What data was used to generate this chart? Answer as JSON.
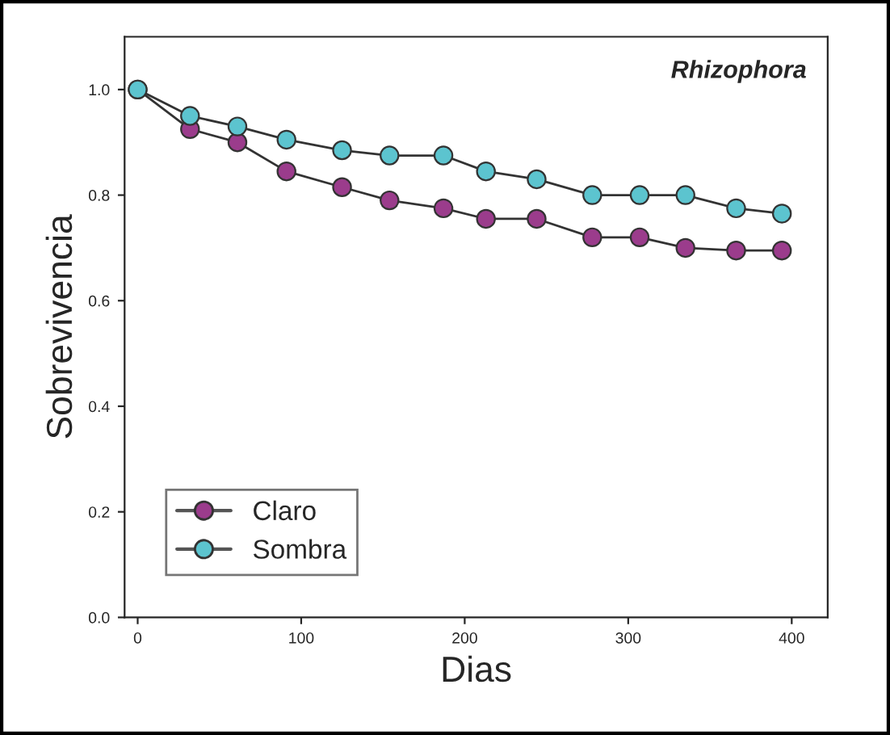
{
  "chart_data": {
    "type": "line",
    "title": "Rhizophora",
    "xlabel": "Dias",
    "ylabel": "Sobrevivencia",
    "marker": "circle",
    "legend": "bottom left",
    "grid": false,
    "xlim": [
      -8,
      422
    ],
    "xticks": [
      0,
      100,
      200,
      300,
      400
    ],
    "ylim": [
      0,
      1.1
    ],
    "yticks": [
      {
        "value": 0,
        "label": "0.0"
      },
      {
        "value": 0.2,
        "label": "0.2"
      },
      {
        "value": 0.4,
        "label": "0.4"
      },
      {
        "value": 0.6,
        "label": "0.6"
      },
      {
        "value": 0.8,
        "label": "0.8"
      },
      {
        "value": 1.0,
        "label": "1.0"
      }
    ],
    "x": [
      0,
      32,
      61,
      91,
      125,
      154,
      187,
      213,
      244,
      278,
      307,
      335,
      366,
      394
    ],
    "series": [
      {
        "name": "Claro",
        "color": "#9b3c8c",
        "values": [
          1.0,
          0.925,
          0.9,
          0.845,
          0.815,
          0.79,
          0.775,
          0.755,
          0.755,
          0.72,
          0.72,
          0.7,
          0.695,
          0.695
        ]
      },
      {
        "name": "Sombra",
        "color": "#5cc4cf",
        "values": [
          1.0,
          0.95,
          0.93,
          0.905,
          0.885,
          0.875,
          0.875,
          0.845,
          0.83,
          0.8,
          0.8,
          0.8,
          0.775,
          0.765
        ]
      }
    ]
  }
}
